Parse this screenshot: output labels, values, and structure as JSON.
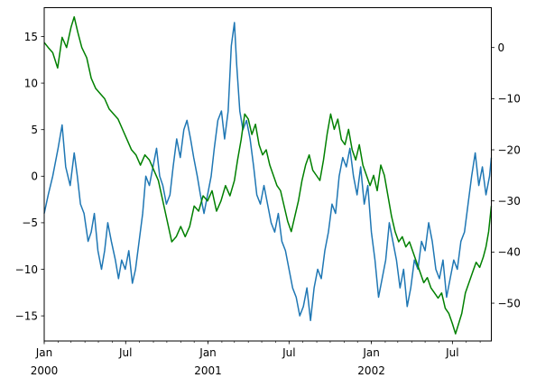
{
  "chart_data": {
    "type": "line",
    "title": "",
    "xlabel": "",
    "ylabel": "",
    "x_range": [
      "2000-01-01",
      "2002-09-26"
    ],
    "x_ticks": [
      {
        "date": "2000-01-01",
        "label": "Jan",
        "year_label": "2000"
      },
      {
        "date": "2000-07-01",
        "label": "Jul"
      },
      {
        "date": "2001-01-01",
        "label": "Jan",
        "year_label": "2001"
      },
      {
        "date": "2001-07-01",
        "label": "Jul"
      },
      {
        "date": "2002-01-01",
        "label": "Jan",
        "year_label": "2002"
      },
      {
        "date": "2002-07-01",
        "label": "Jul"
      }
    ],
    "y_left": {
      "lim": [
        -17.7,
        18.1
      ],
      "ticks": [
        -15,
        -10,
        -5,
        0,
        5,
        10,
        15
      ]
    },
    "y_right": {
      "lim": [
        -57.4,
        7.8
      ],
      "ticks": [
        -50,
        -40,
        -30,
        -20,
        -10,
        0
      ]
    },
    "grid": false,
    "series": [
      {
        "axis": "left",
        "color": "#1f77b4",
        "points": [
          [
            "2000-01-01",
            -4
          ],
          [
            "2000-01-10",
            -2
          ],
          [
            "2000-01-20",
            0
          ],
          [
            "2000-02-01",
            3
          ],
          [
            "2000-02-10",
            5.5
          ],
          [
            "2000-02-18",
            1
          ],
          [
            "2000-02-28",
            -1
          ],
          [
            "2000-03-08",
            2.5
          ],
          [
            "2000-03-15",
            0
          ],
          [
            "2000-03-22",
            -3
          ],
          [
            "2000-03-30",
            -4
          ],
          [
            "2000-04-08",
            -7
          ],
          [
            "2000-04-15",
            -6
          ],
          [
            "2000-04-22",
            -4
          ],
          [
            "2000-04-30",
            -8
          ],
          [
            "2000-05-08",
            -10
          ],
          [
            "2000-05-15",
            -8
          ],
          [
            "2000-05-22",
            -5
          ],
          [
            "2000-05-30",
            -7
          ],
          [
            "2000-06-08",
            -9
          ],
          [
            "2000-06-15",
            -11
          ],
          [
            "2000-06-22",
            -9
          ],
          [
            "2000-06-30",
            -10
          ],
          [
            "2000-07-08",
            -8
          ],
          [
            "2000-07-16",
            -11.5
          ],
          [
            "2000-07-23",
            -10
          ],
          [
            "2000-07-31",
            -7
          ],
          [
            "2000-08-08",
            -4
          ],
          [
            "2000-08-15",
            0
          ],
          [
            "2000-08-23",
            -1
          ],
          [
            "2000-08-31",
            1
          ],
          [
            "2000-09-08",
            3
          ],
          [
            "2000-09-15",
            0
          ],
          [
            "2000-09-22",
            -1
          ],
          [
            "2000-09-30",
            -3
          ],
          [
            "2000-10-08",
            -2
          ],
          [
            "2000-10-15",
            1
          ],
          [
            "2000-10-23",
            4
          ],
          [
            "2000-10-31",
            2
          ],
          [
            "2000-11-08",
            5
          ],
          [
            "2000-11-15",
            6
          ],
          [
            "2000-11-23",
            4
          ],
          [
            "2000-11-30",
            2
          ],
          [
            "2000-12-08",
            0
          ],
          [
            "2000-12-15",
            -2
          ],
          [
            "2000-12-23",
            -4
          ],
          [
            "2000-12-31",
            -2
          ],
          [
            "2001-01-08",
            0
          ],
          [
            "2001-01-15",
            3
          ],
          [
            "2001-01-23",
            6
          ],
          [
            "2001-01-31",
            7
          ],
          [
            "2001-02-07",
            4
          ],
          [
            "2001-02-15",
            7
          ],
          [
            "2001-02-22",
            14
          ],
          [
            "2001-03-01",
            16.5
          ],
          [
            "2001-03-06",
            12
          ],
          [
            "2001-03-13",
            7
          ],
          [
            "2001-03-20",
            5
          ],
          [
            "2001-03-28",
            6
          ],
          [
            "2001-04-05",
            4
          ],
          [
            "2001-04-13",
            1
          ],
          [
            "2001-04-20",
            -2
          ],
          [
            "2001-04-28",
            -3
          ],
          [
            "2001-05-06",
            -1
          ],
          [
            "2001-05-14",
            -3
          ],
          [
            "2001-05-22",
            -5
          ],
          [
            "2001-05-30",
            -6
          ],
          [
            "2001-06-07",
            -4
          ],
          [
            "2001-06-15",
            -7
          ],
          [
            "2001-06-23",
            -8
          ],
          [
            "2001-07-01",
            -10
          ],
          [
            "2001-07-09",
            -12
          ],
          [
            "2001-07-17",
            -13
          ],
          [
            "2001-07-25",
            -15
          ],
          [
            "2001-08-02",
            -14
          ],
          [
            "2001-08-10",
            -12
          ],
          [
            "2001-08-18",
            -15.5
          ],
          [
            "2001-08-26",
            -12
          ],
          [
            "2001-09-03",
            -10
          ],
          [
            "2001-09-11",
            -11
          ],
          [
            "2001-09-19",
            -8
          ],
          [
            "2001-09-27",
            -6
          ],
          [
            "2001-10-05",
            -3
          ],
          [
            "2001-10-13",
            -4
          ],
          [
            "2001-10-21",
            0
          ],
          [
            "2001-10-29",
            2
          ],
          [
            "2001-11-06",
            1
          ],
          [
            "2001-11-14",
            3
          ],
          [
            "2001-11-22",
            0
          ],
          [
            "2001-11-30",
            -2
          ],
          [
            "2001-12-08",
            1
          ],
          [
            "2001-12-16",
            -3
          ],
          [
            "2001-12-24",
            -1
          ],
          [
            "2002-01-01",
            -6
          ],
          [
            "2002-01-09",
            -9
          ],
          [
            "2002-01-17",
            -13
          ],
          [
            "2002-01-25",
            -11
          ],
          [
            "2002-02-02",
            -9
          ],
          [
            "2002-02-10",
            -5
          ],
          [
            "2002-02-18",
            -7
          ],
          [
            "2002-02-26",
            -9
          ],
          [
            "2002-03-06",
            -12
          ],
          [
            "2002-03-14",
            -10
          ],
          [
            "2002-03-22",
            -14
          ],
          [
            "2002-03-30",
            -12
          ],
          [
            "2002-04-07",
            -9
          ],
          [
            "2002-04-15",
            -10
          ],
          [
            "2002-04-23",
            -7
          ],
          [
            "2002-05-01",
            -8
          ],
          [
            "2002-05-09",
            -5
          ],
          [
            "2002-05-17",
            -7
          ],
          [
            "2002-05-25",
            -10
          ],
          [
            "2002-06-02",
            -11
          ],
          [
            "2002-06-10",
            -9
          ],
          [
            "2002-06-18",
            -13
          ],
          [
            "2002-06-26",
            -11
          ],
          [
            "2002-07-04",
            -9
          ],
          [
            "2002-07-12",
            -10
          ],
          [
            "2002-07-20",
            -7
          ],
          [
            "2002-07-28",
            -6
          ],
          [
            "2002-08-05",
            -3
          ],
          [
            "2002-08-13",
            0
          ],
          [
            "2002-08-21",
            2.5
          ],
          [
            "2002-08-29",
            -1
          ],
          [
            "2002-09-06",
            1
          ],
          [
            "2002-09-14",
            -2
          ],
          [
            "2002-09-22",
            0
          ],
          [
            "2002-09-26",
            2
          ]
        ]
      },
      {
        "axis": "right",
        "color": "#008000",
        "points": [
          [
            "2000-01-01",
            1
          ],
          [
            "2000-01-10",
            0
          ],
          [
            "2000-01-20",
            -1
          ],
          [
            "2000-01-31",
            -4
          ],
          [
            "2000-02-10",
            2
          ],
          [
            "2000-02-20",
            0
          ],
          [
            "2000-03-01",
            4
          ],
          [
            "2000-03-08",
            6
          ],
          [
            "2000-03-16",
            3
          ],
          [
            "2000-03-25",
            0
          ],
          [
            "2000-04-05",
            -2
          ],
          [
            "2000-04-15",
            -6
          ],
          [
            "2000-04-25",
            -8
          ],
          [
            "2000-05-05",
            -9
          ],
          [
            "2000-05-15",
            -10
          ],
          [
            "2000-05-25",
            -12
          ],
          [
            "2000-06-04",
            -13
          ],
          [
            "2000-06-14",
            -14
          ],
          [
            "2000-06-24",
            -16
          ],
          [
            "2000-07-04",
            -18
          ],
          [
            "2000-07-14",
            -20
          ],
          [
            "2000-07-24",
            -21
          ],
          [
            "2000-08-03",
            -23
          ],
          [
            "2000-08-13",
            -21
          ],
          [
            "2000-08-23",
            -22
          ],
          [
            "2000-09-02",
            -24
          ],
          [
            "2000-09-12",
            -26
          ],
          [
            "2000-09-22",
            -30
          ],
          [
            "2000-10-02",
            -34
          ],
          [
            "2000-10-12",
            -38
          ],
          [
            "2000-10-22",
            -37
          ],
          [
            "2000-11-01",
            -35
          ],
          [
            "2000-11-11",
            -37
          ],
          [
            "2000-11-21",
            -35
          ],
          [
            "2000-12-01",
            -31
          ],
          [
            "2000-12-11",
            -32
          ],
          [
            "2000-12-21",
            -29
          ],
          [
            "2000-12-31",
            -30
          ],
          [
            "2001-01-10",
            -28
          ],
          [
            "2001-01-20",
            -32
          ],
          [
            "2001-01-30",
            -30
          ],
          [
            "2001-02-09",
            -27
          ],
          [
            "2001-02-19",
            -29
          ],
          [
            "2001-03-01",
            -26
          ],
          [
            "2001-03-08",
            -22
          ],
          [
            "2001-03-16",
            -18
          ],
          [
            "2001-03-24",
            -13
          ],
          [
            "2001-04-01",
            -14
          ],
          [
            "2001-04-09",
            -17
          ],
          [
            "2001-04-17",
            -15
          ],
          [
            "2001-04-25",
            -19
          ],
          [
            "2001-05-03",
            -21
          ],
          [
            "2001-05-11",
            -20
          ],
          [
            "2001-05-19",
            -23
          ],
          [
            "2001-05-27",
            -25
          ],
          [
            "2001-06-04",
            -27
          ],
          [
            "2001-06-12",
            -28
          ],
          [
            "2001-06-20",
            -31
          ],
          [
            "2001-06-28",
            -34
          ],
          [
            "2001-07-06",
            -36
          ],
          [
            "2001-07-14",
            -33
          ],
          [
            "2001-07-22",
            -30
          ],
          [
            "2001-07-30",
            -26
          ],
          [
            "2001-08-07",
            -23
          ],
          [
            "2001-08-15",
            -21
          ],
          [
            "2001-08-23",
            -24
          ],
          [
            "2001-08-31",
            -25
          ],
          [
            "2001-09-08",
            -26
          ],
          [
            "2001-09-16",
            -22
          ],
          [
            "2001-09-24",
            -17
          ],
          [
            "2001-10-02",
            -13
          ],
          [
            "2001-10-10",
            -16
          ],
          [
            "2001-10-18",
            -14
          ],
          [
            "2001-10-26",
            -18
          ],
          [
            "2001-11-03",
            -19
          ],
          [
            "2001-11-11",
            -16
          ],
          [
            "2001-11-19",
            -20
          ],
          [
            "2001-11-27",
            -22
          ],
          [
            "2001-12-05",
            -19
          ],
          [
            "2001-12-13",
            -23
          ],
          [
            "2001-12-21",
            -25
          ],
          [
            "2001-12-29",
            -27
          ],
          [
            "2002-01-06",
            -25
          ],
          [
            "2002-01-14",
            -28
          ],
          [
            "2002-01-22",
            -23
          ],
          [
            "2002-01-30",
            -25
          ],
          [
            "2002-02-07",
            -29
          ],
          [
            "2002-02-15",
            -33
          ],
          [
            "2002-02-23",
            -36
          ],
          [
            "2002-03-03",
            -38
          ],
          [
            "2002-03-11",
            -37
          ],
          [
            "2002-03-19",
            -39
          ],
          [
            "2002-03-27",
            -38
          ],
          [
            "2002-04-04",
            -40
          ],
          [
            "2002-04-12",
            -42
          ],
          [
            "2002-04-20",
            -44
          ],
          [
            "2002-04-28",
            -46
          ],
          [
            "2002-05-06",
            -45
          ],
          [
            "2002-05-14",
            -47
          ],
          [
            "2002-05-22",
            -48
          ],
          [
            "2002-05-30",
            -49
          ],
          [
            "2002-06-07",
            -48
          ],
          [
            "2002-06-15",
            -51
          ],
          [
            "2002-06-23",
            -52
          ],
          [
            "2002-07-01",
            -54
          ],
          [
            "2002-07-08",
            -56
          ],
          [
            "2002-07-15",
            -54
          ],
          [
            "2002-07-22",
            -52
          ],
          [
            "2002-07-30",
            -48
          ],
          [
            "2002-08-07",
            -46
          ],
          [
            "2002-08-15",
            -44
          ],
          [
            "2002-08-23",
            -42
          ],
          [
            "2002-08-31",
            -43
          ],
          [
            "2002-09-08",
            -41
          ],
          [
            "2002-09-14",
            -39
          ],
          [
            "2002-09-20",
            -36
          ],
          [
            "2002-09-26",
            -31
          ]
        ]
      }
    ]
  }
}
